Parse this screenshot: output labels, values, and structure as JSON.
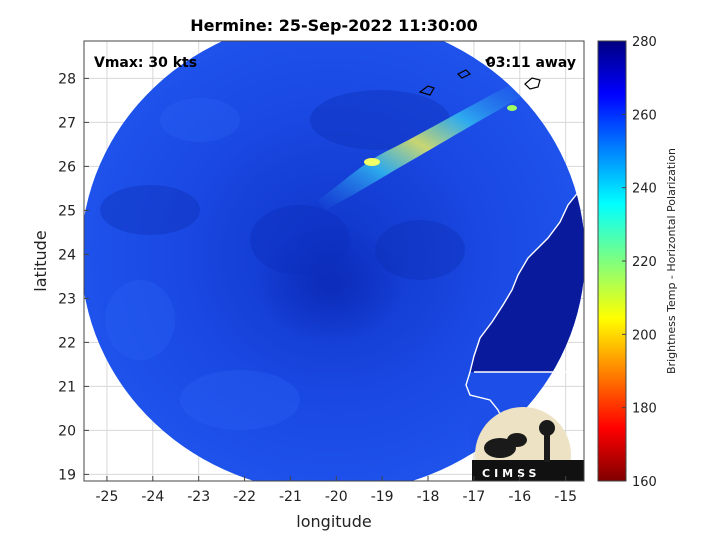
{
  "title": "Hermine: 25-Sep-2022 11:30:00",
  "annotations": {
    "vmax": "Vmax: 30 kts",
    "away": "03:11 away"
  },
  "axes": {
    "xlabel": "longitude",
    "ylabel": "latitude",
    "xlim": [
      -25.5,
      -14.6
    ],
    "ylim": [
      18.85,
      28.85
    ],
    "xticks": [
      -25,
      -24,
      -23,
      -22,
      -21,
      -20,
      -19,
      -18,
      -17,
      -16,
      -15
    ],
    "yticks": [
      19,
      20,
      21,
      22,
      23,
      24,
      25,
      26,
      27,
      28
    ],
    "grid": true
  },
  "colorbar": {
    "label": "Brightness Temp - Horizontal Polarization",
    "min": 160,
    "max": 280,
    "ticks": [
      160,
      180,
      200,
      220,
      240,
      260,
      280
    ],
    "colormap": "jet"
  },
  "logo": {
    "text": "CIMSS"
  },
  "colors": {
    "disk_base": "#1a48e6",
    "disk_dark": "#0d2ec0",
    "land_ocean_deep": "#0a1aa0",
    "warm_band": "#35d6f0",
    "coastline": "#ffffff"
  }
}
